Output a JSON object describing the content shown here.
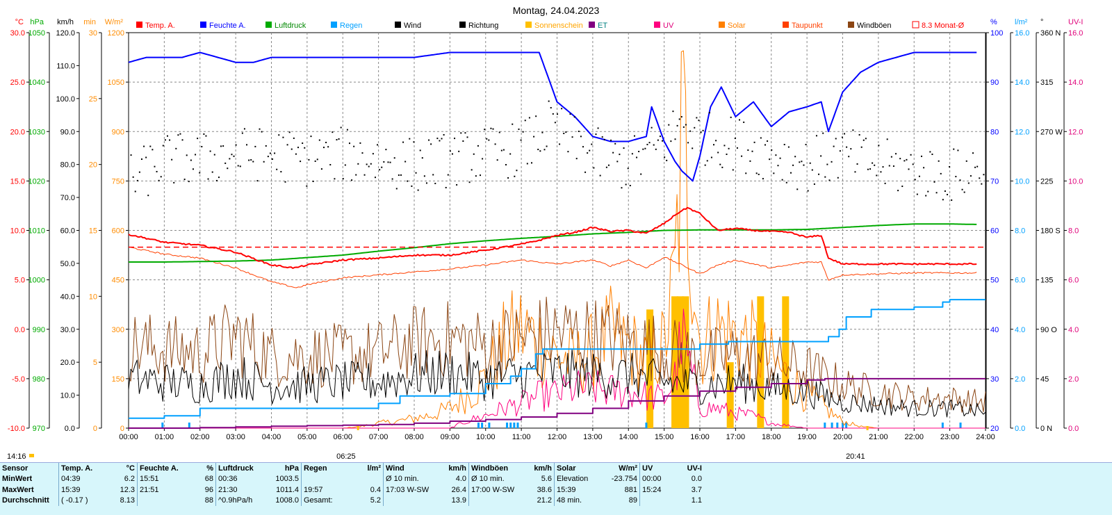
{
  "title": "Montag, 24.04.2023",
  "colors": {
    "temp": "#ff0000",
    "humidity": "#0000ff",
    "pressure": "#00aa00",
    "rain": "#00a0ff",
    "wind": "#000000",
    "direction": "#000000",
    "sunshine": "#ffc000",
    "et": "#800080",
    "uv": "#ff0080",
    "solar": "#ff8000",
    "dewpoint": "#ff4000",
    "gusts": "#8b4513",
    "avg": "#ff0000"
  },
  "chart_data": {
    "type": "line",
    "title": "Montag, 24.04.2023",
    "x_ticks": [
      "00:00",
      "01:00",
      "02:00",
      "03:00",
      "04:00",
      "05:00",
      "06:00",
      "07:00",
      "08:00",
      "09:00",
      "10:00",
      "11:00",
      "12:00",
      "13:00",
      "14:00",
      "15:00",
      "16:00",
      "17:00",
      "18:00",
      "19:00",
      "20:00",
      "21:00",
      "22:00",
      "23:00",
      "24:00"
    ],
    "sunrise": "06:25",
    "sunset": "20:41",
    "timestamp": "14:16",
    "grid": true,
    "legend_position": "top",
    "axes": {
      "temp": {
        "unit": "°C",
        "ticks": [
          "30.0",
          "25.0",
          "20.0",
          "15.0",
          "10.0",
          "5.0",
          "0.0",
          "-5.0",
          "-10.0"
        ],
        "range": [
          -10,
          30
        ]
      },
      "pressure": {
        "unit": "hPa",
        "ticks": [
          "1050",
          "1040",
          "1030",
          "1020",
          "1010",
          "1000",
          "990",
          "980",
          "970"
        ],
        "range": [
          970,
          1050
        ]
      },
      "wind": {
        "unit": "km/h",
        "ticks": [
          "120.0",
          "110.0",
          "100.0",
          "90.0",
          "80.0",
          "70.0",
          "60.0",
          "50.0",
          "40.0",
          "30.0",
          "20.0",
          "10.0",
          "0.0"
        ],
        "range": [
          0,
          120
        ]
      },
      "sunshine": {
        "unit": "min",
        "ticks": [
          "30",
          "25",
          "20",
          "15",
          "10",
          "5",
          "0"
        ],
        "range": [
          0,
          30
        ]
      },
      "solar": {
        "unit": "W/m²",
        "ticks": [
          "1200",
          "1050",
          "900",
          "750",
          "600",
          "450",
          "300",
          "150",
          "0"
        ],
        "range": [
          0,
          1200
        ]
      },
      "humidity": {
        "unit": "%",
        "ticks": [
          "100",
          "90",
          "80",
          "70",
          "60",
          "50",
          "40",
          "30",
          "20"
        ],
        "range": [
          20,
          100
        ]
      },
      "rain": {
        "unit": "l/m²",
        "ticks": [
          "16.0",
          "14.0",
          "12.0",
          "10.0",
          "8.0",
          "6.0",
          "4.0",
          "2.0",
          "0.0"
        ],
        "range": [
          0,
          16
        ]
      },
      "direction": {
        "unit": "°",
        "ticks": [
          "360 N",
          "315",
          "270 W",
          "225",
          "180 S",
          "135",
          "90 O",
          "45",
          "0 N"
        ],
        "range": [
          0,
          360
        ]
      },
      "uvi": {
        "unit": "UV-I",
        "ticks": [
          "16.0",
          "14.0",
          "12.0",
          "10.0",
          "8.0",
          "6.0",
          "4.0",
          "2.0",
          "0.0"
        ],
        "range": [
          0,
          16
        ]
      }
    },
    "legend": [
      "Temp. A.",
      "Feuchte A.",
      "Luftdruck",
      "Regen",
      "Wind",
      "Richtung",
      "Sonnenschein",
      "ET",
      "UV",
      "Solar",
      "Taupunkt",
      "Windböen",
      "8.3 Monat-Ø"
    ],
    "series": [
      {
        "name": "Temp. A.",
        "axis": "temp",
        "x": [
          0,
          1,
          2,
          3,
          4,
          4.65,
          5,
          6,
          7,
          8,
          9,
          10,
          11,
          11.5,
          12,
          12.5,
          13,
          13.5,
          14,
          14.5,
          15,
          15.4,
          15.65,
          16,
          16.5,
          17,
          17.5,
          18,
          18.5,
          19,
          19.4,
          19.6,
          20,
          21,
          22,
          23,
          23.8
        ],
        "y": [
          9.6,
          8.8,
          8.5,
          7.8,
          6.5,
          6.2,
          6.5,
          7.0,
          7.2,
          7.5,
          7.5,
          8.0,
          8.6,
          9.0,
          9.5,
          9.8,
          10.3,
          9.9,
          10.0,
          9.7,
          10.7,
          11.8,
          12.3,
          11.7,
          10.0,
          10.2,
          10.0,
          9.9,
          9.8,
          9.3,
          9.5,
          7.2,
          6.6,
          6.6,
          6.6,
          6.6,
          6.6
        ]
      },
      {
        "name": "Feuchte A.",
        "axis": "humidity",
        "x": [
          0,
          0.5,
          1,
          1.5,
          2,
          3,
          3.5,
          4,
          5,
          6,
          7,
          8,
          9,
          10,
          11,
          11.5,
          12,
          12.5,
          13,
          13.5,
          14,
          14.5,
          14.65,
          15,
          15.3,
          15.5,
          15.8,
          16,
          16.3,
          16.6,
          17,
          17.5,
          18,
          18.5,
          19,
          19.4,
          19.6,
          20,
          20.5,
          21,
          22,
          23,
          23.8
        ],
        "y": [
          94,
          95,
          95,
          95,
          96,
          94,
          94,
          95,
          95,
          95,
          95,
          95,
          96,
          96,
          96,
          96,
          86,
          83,
          79,
          78,
          78,
          79,
          85,
          78,
          74,
          72,
          70,
          75,
          85,
          89,
          83,
          86,
          81,
          84,
          85,
          86,
          80,
          88,
          92,
          94,
          96,
          96,
          96
        ]
      },
      {
        "name": "Luftdruck",
        "axis": "pressure",
        "x": [
          0,
          1,
          2,
          3,
          4,
          5,
          6,
          7,
          8,
          9,
          10,
          11,
          12,
          13,
          14,
          15,
          16,
          17,
          18,
          19,
          20,
          21,
          22,
          23,
          23.8
        ],
        "y": [
          1003.6,
          1003.6,
          1003.7,
          1003.8,
          1004.0,
          1004.5,
          1005.0,
          1005.8,
          1006.5,
          1007.3,
          1007.9,
          1008.4,
          1008.8,
          1009.3,
          1009.6,
          1010.0,
          1010.1,
          1010.1,
          1010.1,
          1010.2,
          1010.6,
          1011.0,
          1011.3,
          1011.3,
          1011.2
        ]
      },
      {
        "name": "Regen",
        "axis": "rain",
        "x": [
          0,
          0.95,
          1,
          1.7,
          2,
          6.3,
          7,
          7.6,
          8,
          9,
          10,
          10.7,
          11,
          11.4,
          11.6,
          14.4,
          14.5,
          15.5,
          16,
          16.8,
          17,
          19.5,
          19.6,
          19.9,
          20.1,
          20.8,
          21,
          22,
          22.8,
          23,
          24
        ],
        "y": [
          0.4,
          0.4,
          0.5,
          0.5,
          0.8,
          0.8,
          1.0,
          1.3,
          1.3,
          1.4,
          1.8,
          2.1,
          2.4,
          3.0,
          3.2,
          3.2,
          3.2,
          3.2,
          3.4,
          3.5,
          3.5,
          3.5,
          3.7,
          4.0,
          4.5,
          4.8,
          4.8,
          4.9,
          5.1,
          5.2,
          5.2
        ]
      },
      {
        "name": "ET",
        "axis": "rain",
        "x": [
          0,
          1,
          2,
          3,
          4,
          5,
          6,
          7,
          8,
          9,
          10,
          11,
          12,
          13,
          14,
          15,
          16,
          17,
          18,
          19,
          19.5,
          20,
          21,
          22,
          23,
          24
        ],
        "y": [
          0.0,
          0.0,
          0.02,
          0.05,
          0.08,
          0.1,
          0.12,
          0.15,
          0.2,
          0.28,
          0.35,
          0.45,
          0.6,
          0.8,
          1.1,
          1.3,
          1.5,
          1.65,
          1.8,
          1.95,
          2.0,
          2.0,
          2.0,
          2.0,
          2.0,
          2.0
        ]
      },
      {
        "name": "Taupunkt",
        "axis": "temp",
        "x": [
          0,
          1,
          2,
          3,
          4,
          4.7,
          5,
          6,
          7,
          8,
          9,
          10,
          11,
          12,
          13,
          13.5,
          14,
          14.5,
          15,
          15.5,
          16,
          16.5,
          17,
          18,
          19,
          19.4,
          19.6,
          20,
          21,
          22,
          23,
          23.8
        ],
        "y": [
          8.3,
          7.6,
          7.2,
          6.2,
          4.8,
          4.2,
          4.5,
          5.2,
          5.5,
          5.8,
          6.1,
          6.5,
          7.0,
          6.6,
          7.0,
          6.4,
          7.0,
          6.2,
          7.3,
          6.5,
          5.6,
          6.5,
          7.0,
          6.2,
          6.8,
          6.8,
          5.0,
          5.5,
          5.6,
          5.7,
          5.7,
          5.7
        ]
      },
      {
        "name": "Wind",
        "axis": "wind",
        "type": "noisy",
        "x": [
          0,
          1,
          2,
          3,
          4,
          5,
          6,
          7,
          8,
          9,
          10,
          11,
          12,
          13,
          14,
          15,
          16,
          17,
          18,
          19,
          20,
          21,
          22,
          23,
          24
        ],
        "y": [
          15,
          14,
          13,
          16,
          13,
          13,
          14,
          14,
          16,
          17,
          15,
          16,
          17,
          16,
          16,
          14,
          13,
          14,
          12,
          11,
          8,
          7,
          6,
          6,
          5
        ]
      },
      {
        "name": "Windböen",
        "axis": "wind",
        "type": "noisy",
        "x": [
          0,
          1,
          2,
          3,
          4,
          5,
          6,
          7,
          8,
          9,
          10,
          11,
          12,
          13,
          14,
          15,
          16,
          17,
          18,
          19,
          20,
          21,
          22,
          23,
          24
        ],
        "y": [
          25,
          24,
          23,
          28,
          22,
          22,
          22,
          23,
          26,
          27,
          25,
          27,
          29,
          28,
          26,
          24,
          21,
          22,
          20,
          18,
          13,
          11,
          9,
          9,
          8
        ]
      },
      {
        "name": "Solar",
        "axis": "solar",
        "type": "noisy",
        "x": [
          0,
          6,
          6.5,
          7,
          7.5,
          8,
          8.5,
          9,
          9.5,
          10,
          10.5,
          11,
          11.5,
          12,
          12.5,
          13,
          13.5,
          14,
          14.5,
          15,
          15.3,
          15.5,
          15.7,
          16,
          16.5,
          17,
          17.5,
          18,
          18.5,
          19,
          19.5,
          20,
          20.5,
          21,
          24
        ],
        "y": [
          0,
          0,
          5,
          15,
          20,
          30,
          40,
          60,
          100,
          150,
          250,
          300,
          260,
          220,
          200,
          230,
          280,
          250,
          200,
          250,
          450,
          881,
          700,
          250,
          300,
          280,
          250,
          200,
          150,
          100,
          60,
          20,
          5,
          0,
          0
        ]
      },
      {
        "name": "UV",
        "axis": "uvi",
        "type": "noisy",
        "x": [
          0,
          9,
          9.5,
          10,
          10.5,
          11,
          11.5,
          12,
          12.5,
          13,
          13.5,
          14,
          14.5,
          15,
          15.3,
          15.5,
          15.8,
          16,
          16.5,
          17,
          17.5,
          18,
          19,
          24
        ],
        "y": [
          0,
          0,
          0.3,
          0.5,
          0.8,
          1.0,
          1.3,
          1.4,
          1.6,
          1.6,
          1.5,
          1.5,
          1.3,
          1.2,
          2.0,
          3.7,
          2.0,
          0.8,
          0.8,
          0.6,
          0.5,
          0.2,
          0,
          0
        ]
      },
      {
        "name": "Richtung",
        "axis": "direction",
        "type": "scatter",
        "x": [
          0,
          1,
          2,
          3,
          4,
          5,
          6,
          7,
          8,
          9,
          10,
          11,
          11.8,
          12.5,
          13,
          14,
          15,
          15.5,
          16,
          17,
          18,
          19,
          19.4,
          20,
          21,
          22,
          23,
          24
        ],
        "y": [
          225,
          245,
          245,
          250,
          250,
          245,
          250,
          245,
          240,
          245,
          250,
          255,
          275,
          260,
          250,
          240,
          260,
          280,
          265,
          260,
          250,
          240,
          245,
          250,
          240,
          235,
          230,
          240
        ]
      },
      {
        "name": "8.3 Monat-Ø",
        "axis": "temp",
        "x": [
          0,
          24
        ],
        "y": [
          8.3,
          8.3
        ]
      }
    ],
    "sunshine_bars": [
      {
        "x": 14.6,
        "y": 9
      },
      {
        "x": 15.3,
        "y": 10
      },
      {
        "x": 15.45,
        "y": 10
      },
      {
        "x": 15.6,
        "y": 10
      },
      {
        "x": 16.85,
        "y": 5
      },
      {
        "x": 17.7,
        "y": 10
      },
      {
        "x": 18.4,
        "y": 10
      }
    ],
    "rain_bars": [
      0.95,
      1.7,
      9.8,
      9.9,
      10.1,
      10.6,
      10.7,
      10.8,
      10.9,
      14.5,
      19.5,
      19.7,
      19.85,
      20.0,
      20.1,
      22.8,
      23.3
    ]
  },
  "stats": {
    "headers": [
      "Sensor",
      "Temp. A.",
      "°C",
      "Feuchte A.",
      "%",
      "Luftdruck",
      "hPa",
      "Regen",
      "l/m²",
      "Wind",
      "km/h",
      "Windböen",
      "km/h",
      "Solar",
      "W/m²",
      "UV",
      "UV-I"
    ],
    "rows": [
      [
        "MinWert",
        "04:39",
        "6.2",
        "15:51",
        "68",
        "00:36",
        "1003.5",
        "",
        "",
        "Ø 10 min.",
        "4.0",
        "Ø 10 min.",
        "5.6",
        "Elevation",
        "-23.754",
        "00:00",
        "0.0"
      ],
      [
        "MaxWert",
        "15:39",
        "12.3",
        "21:51",
        "96",
        "21:30",
        "1011.4",
        "19:57",
        "0.4",
        "17:03  W-SW",
        "26.4",
        "17:00  W-SW",
        "38.6",
        "15:39",
        "881",
        "15:24",
        "3.7"
      ],
      [
        "Durchschnitt",
        "( -0.17 )",
        "8.13",
        "",
        "88",
        "^0.9hPa/h",
        "1008.0",
        "Gesamt:",
        "5.2",
        "",
        "13.9",
        "",
        "21.2",
        "48 min.",
        "89",
        "",
        "1.1"
      ]
    ]
  }
}
